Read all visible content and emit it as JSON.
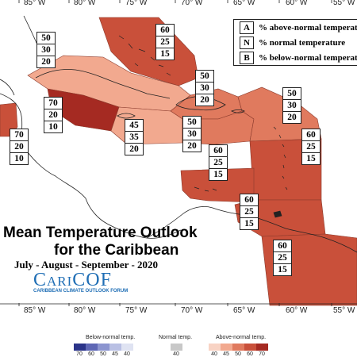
{
  "map": {
    "title_line1": "Mean Temperature Outlook",
    "title_line2": "for the Caribbean",
    "subtitle": "July - August - September - 2020",
    "logo_name": "CariCOF",
    "logo_tagline": "CARIBBEAN CLIMATE OUTLOOK FORUM",
    "longitude_labels": [
      "85° W",
      "80° W",
      "75° W",
      "70° W",
      "65° W",
      "60° W",
      "55° W"
    ],
    "colors": {
      "above_70": "#a52a22",
      "above_60": "#c9503a",
      "above_50": "#e07a5e",
      "above_45": "#f2a98f",
      "above_40": "#f8d3c4",
      "normal": "#c8c8c8",
      "below_40": "#dfe3f2",
      "below_45": "#b9c0e4",
      "below_50": "#8c95d0",
      "below_60": "#5e67b5",
      "below_70": "#2b3489"
    }
  },
  "key": {
    "items": [
      {
        "letter": "A",
        "text": "% above-normal temperature"
      },
      {
        "letter": "N",
        "text": "% normal temperature"
      },
      {
        "letter": "B",
        "text": "% below-normal temperature"
      }
    ]
  },
  "regions": [
    {
      "id": "bahamas",
      "above": "60",
      "normal": "25",
      "below": "15"
    },
    {
      "id": "cuba",
      "above": "50",
      "normal": "30",
      "below": "20"
    },
    {
      "id": "jamaica-caymans",
      "above": "70",
      "normal": "20",
      "below": "10"
    },
    {
      "id": "belize",
      "above": "70",
      "normal": "20",
      "below": "10"
    },
    {
      "id": "hispaniola",
      "above": "50",
      "normal": "30",
      "below": "20"
    },
    {
      "id": "central-caribbean-sea",
      "above": "45",
      "normal": "35",
      "below": "20"
    },
    {
      "id": "puerto-rico-sea",
      "above": "50",
      "normal": "30",
      "below": "20"
    },
    {
      "id": "leeward-islands",
      "above": "50",
      "normal": "30",
      "below": "20"
    },
    {
      "id": "windward-islands",
      "above": "60",
      "normal": "25",
      "below": "15"
    },
    {
      "id": "abc-islands",
      "above": "60",
      "normal": "25",
      "below": "15"
    },
    {
      "id": "trinidad",
      "above": "60",
      "normal": "25",
      "below": "15"
    },
    {
      "id": "guianas",
      "above": "60",
      "normal": "25",
      "below": "15"
    }
  ],
  "scale": {
    "below_caption": "Below-normal temp.",
    "normal_caption": "Normal temp.",
    "above_caption": "Above-normal temp.",
    "below_values": [
      "70",
      "60",
      "50",
      "45",
      "40"
    ],
    "normal_value": "40",
    "above_values": [
      "40",
      "45",
      "50",
      "60",
      "70"
    ]
  }
}
